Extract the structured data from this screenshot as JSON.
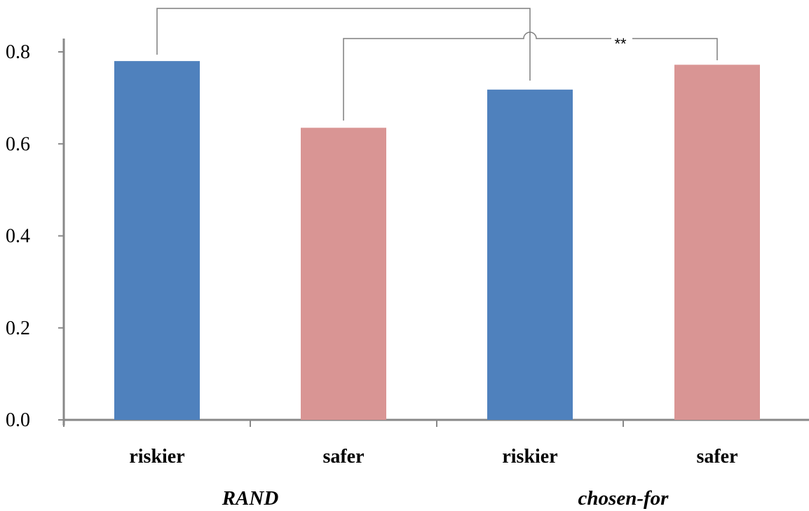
{
  "chart_data": {
    "type": "bar",
    "categories": [
      "riskier",
      "safer",
      "riskier",
      "safer"
    ],
    "groups": [
      "RAND",
      "chosen-for"
    ],
    "group_of_category": [
      0,
      0,
      1,
      1
    ],
    "values": [
      0.78,
      0.635,
      0.718,
      0.772
    ],
    "bar_colors": [
      "#4f81bd",
      "#d99594",
      "#4f81bd",
      "#d99594"
    ],
    "ylim": [
      0.0,
      0.8
    ],
    "yticks": [
      "0.0",
      "0.2",
      "0.4",
      "0.6",
      "0.8"
    ],
    "ytick_values": [
      0.0,
      0.2,
      0.4,
      0.6,
      0.8
    ],
    "title": "",
    "xlabel": "",
    "ylabel": "",
    "grid": false,
    "legend": "none",
    "annotations": [
      {
        "type": "bracket",
        "from_bar": 0,
        "to_bar": 2,
        "label": ""
      },
      {
        "type": "bracket",
        "from_bar": 1,
        "to_bar": 3,
        "label": "**"
      }
    ]
  }
}
